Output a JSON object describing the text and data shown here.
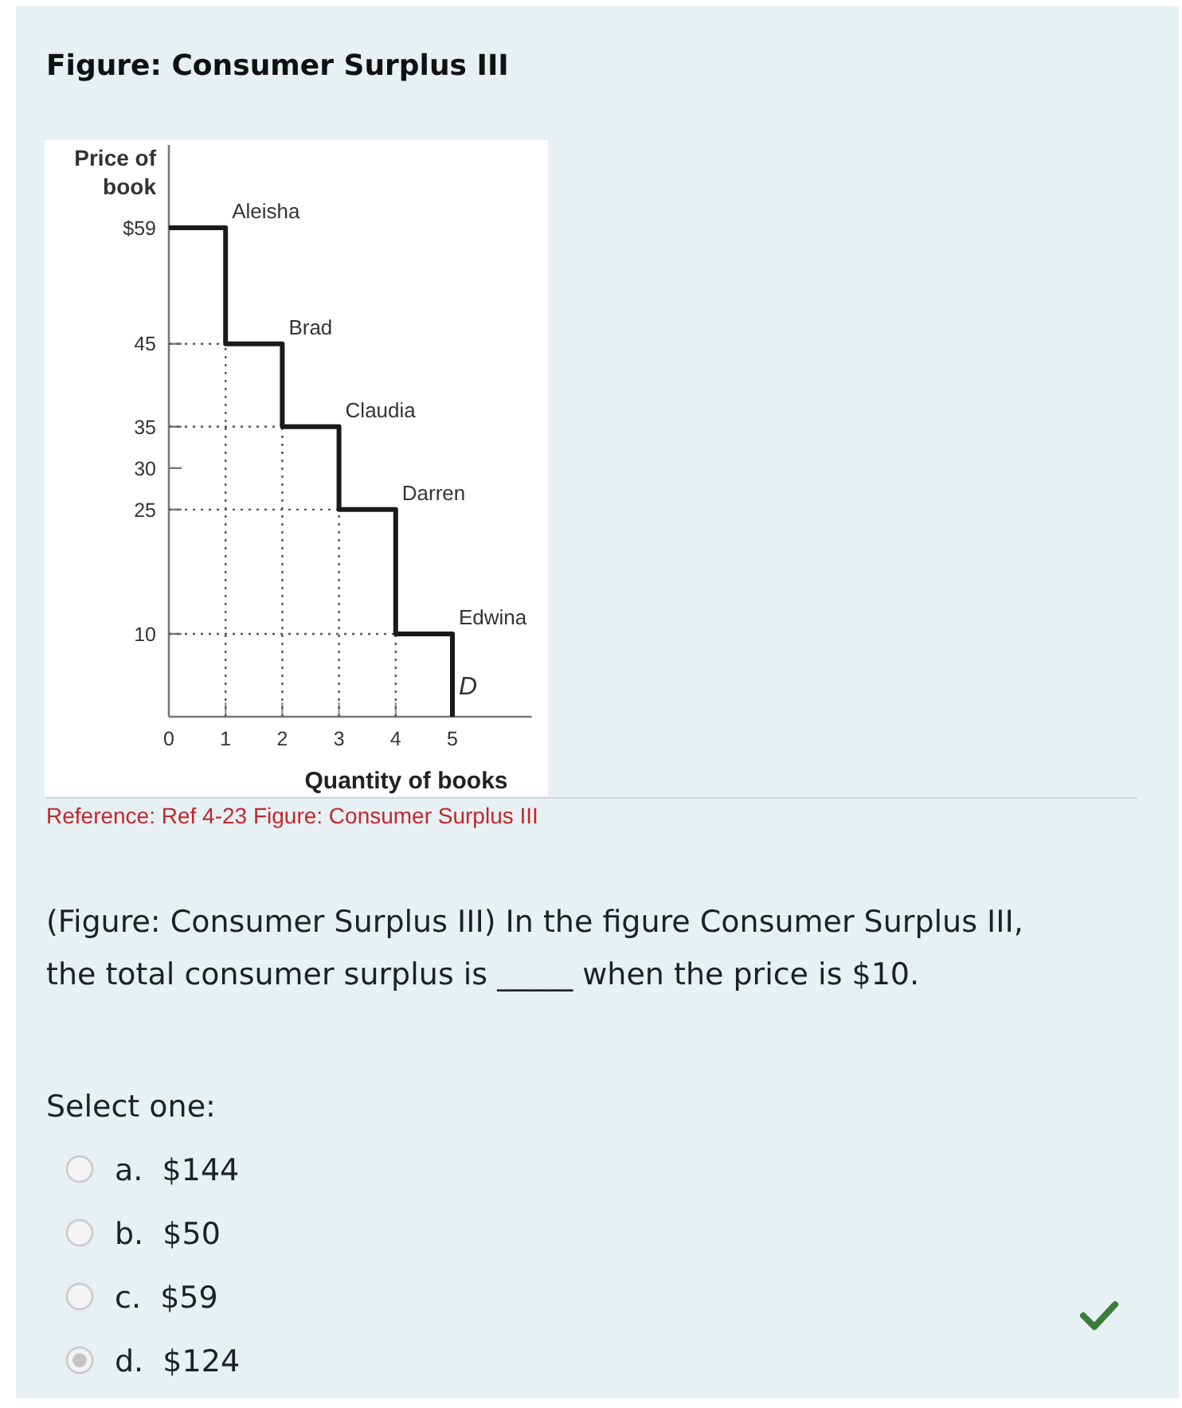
{
  "chart_data": {
    "type": "step",
    "title": "Figure: Consumer Surplus III",
    "xlabel": "Quantity of books",
    "ylabel": "Price of book",
    "x": [
      0,
      1,
      2,
      3,
      4,
      5
    ],
    "series": [
      {
        "type": "line",
        "line_style": "dotted",
        "color": "#555555",
        "x": [
          0,
          1
        ],
        "values": [
          45,
          45
        ]
      },
      {
        "type": "line",
        "line_style": "dotted",
        "color": "#555555",
        "x": [
          1,
          1
        ],
        "values": [
          0,
          45
        ]
      },
      {
        "type": "line",
        "line_style": "dotted",
        "color": "#555555",
        "x": [
          0,
          2
        ],
        "values": [
          35,
          35
        ]
      },
      {
        "type": "line",
        "line_style": "dotted",
        "color": "#555555",
        "x": [
          2,
          2
        ],
        "values": [
          0,
          35
        ]
      },
      {
        "type": "line",
        "line_style": "dotted",
        "color": "#555555",
        "x": [
          0,
          3
        ],
        "values": [
          25,
          25
        ]
      },
      {
        "type": "line",
        "line_style": "dotted",
        "color": "#555555",
        "x": [
          3,
          3
        ],
        "values": [
          0,
          25
        ]
      },
      {
        "type": "line",
        "line_style": "dotted",
        "color": "#555555",
        "x": [
          0,
          4
        ],
        "values": [
          10,
          10
        ]
      },
      {
        "type": "line",
        "line_style": "dotted",
        "color": "#555555",
        "x": [
          4,
          4
        ],
        "values": [
          0,
          10
        ]
      },
      {
        "color": "#1a1a1a",
        "values": [
          59,
          45,
          35,
          25,
          10,
          0
        ]
      }
    ],
    "xlim": [
      0,
      6.4
    ],
    "ylim": [
      0,
      69
    ],
    "xticks": [
      {
        "value": 0,
        "label": "0"
      },
      1,
      2,
      3,
      4,
      5
    ],
    "yticks": [
      10,
      25,
      30,
      35,
      45,
      {
        "value": 59,
        "label": "$59"
      }
    ],
    "annotations": [
      {
        "text": "Aleisha",
        "x": 1,
        "y": 59
      },
      {
        "text": "Brad",
        "x": 2,
        "y": 45
      },
      {
        "text": "Claudia",
        "x": 3,
        "y": 35
      },
      {
        "text": "Darren",
        "x": 4,
        "y": 25
      },
      {
        "text": "Edwina",
        "x": 5,
        "y": 10
      },
      {
        "text": "D",
        "x": 5,
        "y": 1.5
      },
      "Reference: Ref 4-23 Figure: Consumer Surplus III",
      "(Figure: Consumer Surplus III) In the figure Consumer Surplus III, the total consumer surplus is _____ when the price is $10.",
      "Select one:",
      "a.  $144",
      "b.  $50",
      "c.  $59",
      "d.  $124"
    ]
  }
}
